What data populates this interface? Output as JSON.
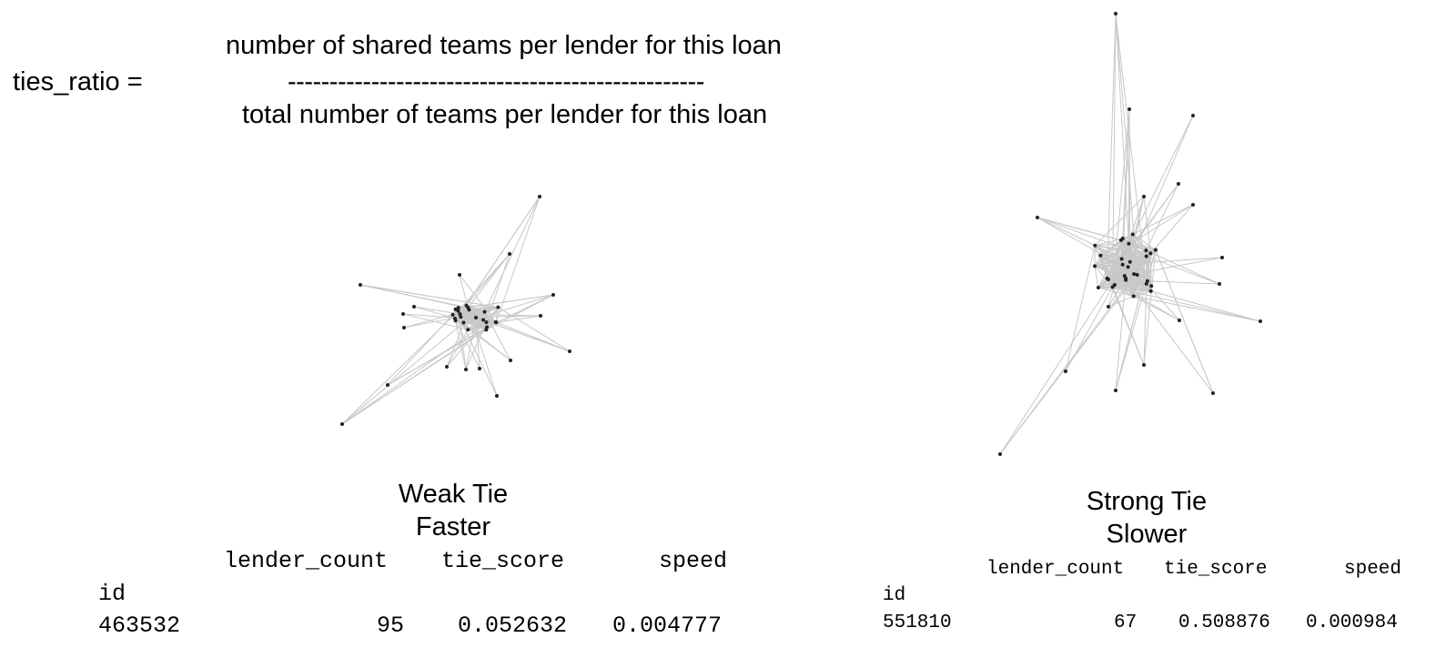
{
  "formula": {
    "lhs": "ties_ratio =",
    "numerator": "number of shared teams per lender for this loan",
    "divider": "--------------------------------------------------",
    "denominator": "total number of teams per lender for this loan"
  },
  "panels": [
    {
      "caption_line1": "Weak Tie",
      "caption_line2": "Faster",
      "table": {
        "headers": [
          "lender_count",
          "tie_score",
          "speed"
        ],
        "index_name": "id",
        "row": {
          "id": "463532",
          "lender_count": "95",
          "tie_score": "0.052632",
          "speed": "0.004777"
        }
      }
    },
    {
      "caption_line1": "Strong Tie",
      "caption_line2": "Slower",
      "table": {
        "headers": [
          "lender_count",
          "tie_score",
          "speed"
        ],
        "index_name": "id",
        "row": {
          "id": "551810",
          "lender_count": "67",
          "tie_score": "0.508876",
          "speed": "0.000984"
        }
      }
    }
  ],
  "colors": {
    "edge": "#c8c8c8",
    "node": "#222222",
    "text": "#000000"
  }
}
